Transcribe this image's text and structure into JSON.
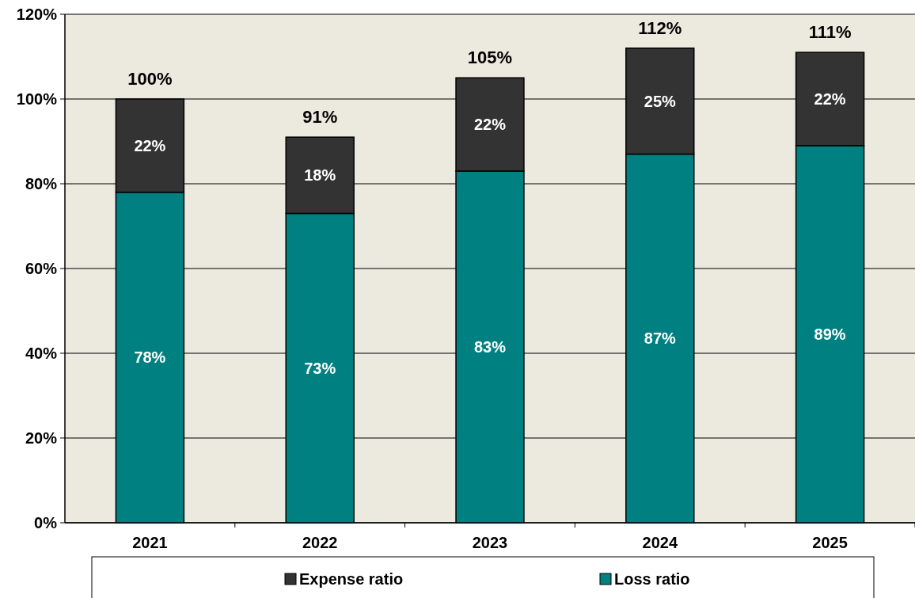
{
  "chart_data": {
    "type": "bar",
    "stacked": true,
    "categories": [
      "2021",
      "2022",
      "2023",
      "2024",
      "2025"
    ],
    "series": [
      {
        "name": "Loss ratio",
        "color": "#008080",
        "values": [
          78,
          73,
          83,
          87,
          89
        ],
        "value_labels": [
          "78%",
          "73%",
          "83%",
          "87%",
          "89%"
        ]
      },
      {
        "name": "Expense ratio",
        "color": "#333333",
        "values": [
          22,
          18,
          22,
          25,
          22
        ],
        "value_labels": [
          "22%",
          "18%",
          "22%",
          "25%",
          "22%"
        ]
      }
    ],
    "ylim": [
      0,
      120
    ],
    "yticks": [
      {
        "value": 0,
        "label": "0%"
      },
      {
        "value": 20,
        "label": "20%"
      },
      {
        "value": 40,
        "label": "40%"
      },
      {
        "value": 60,
        "label": "60%"
      },
      {
        "value": 80,
        "label": "80%"
      },
      {
        "value": 100,
        "label": "100%"
      },
      {
        "value": 120,
        "label": "120%"
      }
    ],
    "grid": "y",
    "totals": [
      "100%",
      "91%",
      "105%",
      "112%",
      "111%"
    ],
    "legend": "bottom"
  }
}
